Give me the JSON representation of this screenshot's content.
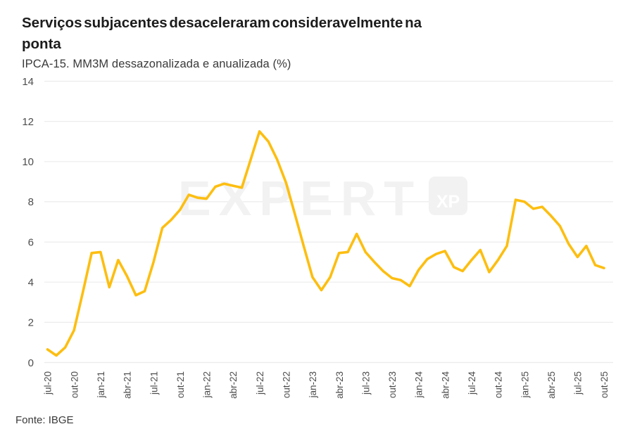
{
  "header": {
    "title_lines": [
      "Serviços subjacentes desaceleraram consideravelmente na",
      "ponta"
    ],
    "subtitle": "IPCA-15. MM3M dessazonalizada e anualizada (%)"
  },
  "footer": {
    "source": "Fonte: IBGE"
  },
  "watermark": {
    "text": "EXPERT",
    "badge": "XP"
  },
  "chart_data": {
    "type": "line",
    "title": "Serviços subjacentes desaceleraram consideravelmente na ponta",
    "subtitle": "IPCA-15. MM3M dessazonalizada e anualizada (%)",
    "source": "Fonte: IBGE",
    "xlabel": "",
    "ylabel": "",
    "ylim": [
      0,
      14
    ],
    "yticks": [
      0,
      2,
      4,
      6,
      8,
      10,
      12,
      14
    ],
    "grid": true,
    "legend_position": "none",
    "x_tick_labels": [
      "jul-20",
      "out-20",
      "jan-21",
      "abr-21",
      "jul-21",
      "out-21",
      "jan-22",
      "abr-22",
      "jul-22",
      "out-22",
      "jan-23",
      "abr-23",
      "jul-23",
      "out-23",
      "jan-24",
      "abr-24",
      "jul-24",
      "out-24",
      "jan-25",
      "abr-25",
      "jul-25",
      "out-25"
    ],
    "x": [
      "jul-20",
      "ago-20",
      "set-20",
      "out-20",
      "nov-20",
      "dez-20",
      "jan-21",
      "fev-21",
      "mar-21",
      "abr-21",
      "mai-21",
      "jun-21",
      "jul-21",
      "ago-21",
      "set-21",
      "out-21",
      "nov-21",
      "dez-21",
      "jan-22",
      "fev-22",
      "mar-22",
      "abr-22",
      "mai-22",
      "jun-22",
      "jul-22",
      "ago-22",
      "set-22",
      "out-22",
      "nov-22",
      "dez-22",
      "jan-23",
      "fev-23",
      "mar-23",
      "abr-23",
      "mai-23",
      "jun-23",
      "jul-23",
      "ago-23",
      "set-23",
      "out-23",
      "nov-23",
      "dez-23",
      "jan-24",
      "fev-24",
      "mar-24",
      "abr-24",
      "mai-24",
      "jun-24",
      "jul-24",
      "ago-24",
      "set-24",
      "out-24",
      "nov-24",
      "dez-24",
      "jan-25",
      "fev-25",
      "mar-25",
      "abr-25",
      "mai-25",
      "jun-25",
      "jul-25",
      "ago-25",
      "set-25",
      "out-25"
    ],
    "values": [
      0.65,
      0.35,
      0.75,
      1.6,
      3.5,
      5.45,
      5.5,
      3.75,
      5.1,
      4.3,
      3.35,
      3.55,
      5.0,
      6.7,
      7.1,
      7.6,
      8.35,
      8.2,
      8.15,
      8.75,
      8.9,
      8.8,
      8.7,
      10.1,
      11.5,
      11.0,
      10.1,
      8.95,
      7.4,
      5.8,
      4.25,
      3.6,
      4.25,
      5.45,
      5.5,
      6.4,
      5.5,
      5.0,
      4.55,
      4.2,
      4.1,
      3.8,
      4.6,
      5.15,
      5.4,
      5.55,
      4.75,
      4.55,
      5.1,
      5.6,
      4.5,
      5.1,
      5.8,
      8.1,
      8.0,
      7.65,
      7.75,
      7.3,
      6.8,
      5.9,
      5.25,
      5.8,
      4.85,
      4.7
    ],
    "colors": {
      "line": "#FDBE10",
      "grid": "#ECECEC",
      "axis_text": "#4D4D4D",
      "watermark": "#F2F2F2"
    }
  }
}
